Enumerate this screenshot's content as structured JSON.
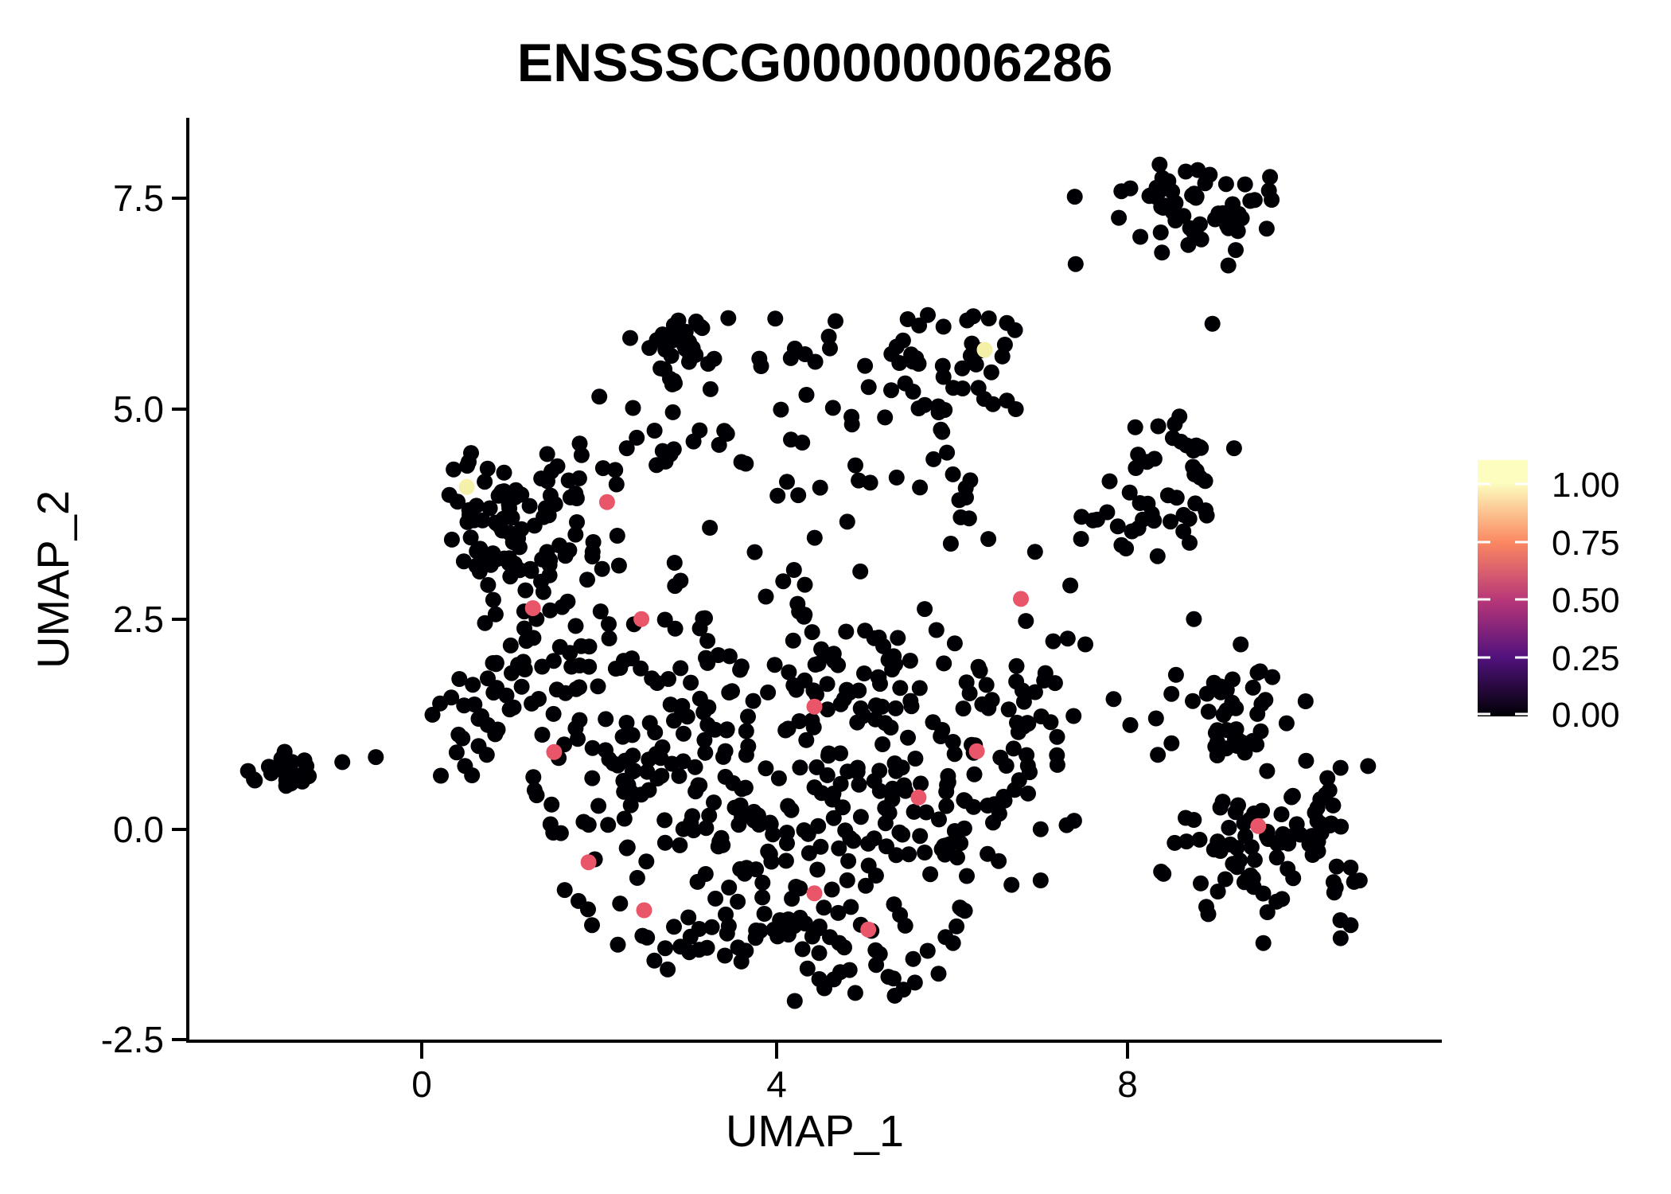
{
  "page": {
    "background": "#FFFFFF"
  },
  "chart_data": {
    "type": "scatter",
    "title": "ENSSSCG00000006286",
    "xlabel": "UMAP_1",
    "ylabel": "UMAP_2",
    "xlim": [
      -2.7,
      11.6
    ],
    "ylim": [
      -2.55,
      8.4
    ],
    "grid": false,
    "legend_position": "right",
    "x_ticks": [
      {
        "value": 0,
        "label": "0"
      },
      {
        "value": 4,
        "label": "4"
      },
      {
        "value": 8,
        "label": "8"
      }
    ],
    "y_ticks": [
      {
        "value": 7.5,
        "label": "7.5"
      },
      {
        "value": 5.0,
        "label": "5.0"
      },
      {
        "value": 2.5,
        "label": "2.5"
      },
      {
        "value": 0.0,
        "label": "0.0"
      },
      {
        "value": -2.5,
        "label": "-2.5"
      }
    ],
    "point_radius_px": 10,
    "point_color_zero": "#000004",
    "colorbar": {
      "colormap": "magma",
      "ticks": [
        {
          "value": 1.0,
          "label": "1.00"
        },
        {
          "value": 0.75,
          "label": "0.75"
        },
        {
          "value": 0.5,
          "label": "0.50"
        },
        {
          "value": 0.25,
          "label": "0.25"
        },
        {
          "value": 0.0,
          "label": "0.00"
        }
      ],
      "gradient": [
        {
          "offset": 0.0,
          "color": "#FCFDBF"
        },
        {
          "offset": 0.09,
          "color": "#FCFDBF"
        },
        {
          "offset": 0.32,
          "color": "#FB8861"
        },
        {
          "offset": 0.55,
          "color": "#B63679"
        },
        {
          "offset": 0.77,
          "color": "#51127C"
        },
        {
          "offset": 1.0,
          "color": "#000004"
        }
      ]
    },
    "highlight_points": [
      {
        "x": 0.51,
        "y": 4.07,
        "value": 0.96,
        "color": "#F5F1AB"
      },
      {
        "x": 6.38,
        "y": 5.7,
        "value": 0.98,
        "color": "#F4F0A8"
      },
      {
        "x": 2.1,
        "y": 3.89,
        "value": 0.7,
        "color": "#E95669"
      },
      {
        "x": 1.26,
        "y": 2.63,
        "value": 0.7,
        "color": "#E95669"
      },
      {
        "x": 2.49,
        "y": 2.5,
        "value": 0.7,
        "color": "#E95669"
      },
      {
        "x": 6.79,
        "y": 2.74,
        "value": 0.7,
        "color": "#E95669"
      },
      {
        "x": 4.45,
        "y": 1.46,
        "value": 0.7,
        "color": "#E95669"
      },
      {
        "x": 1.5,
        "y": 0.92,
        "value": 0.7,
        "color": "#E95669"
      },
      {
        "x": 6.29,
        "y": 0.93,
        "value": 0.7,
        "color": "#E95669"
      },
      {
        "x": 5.63,
        "y": 0.38,
        "value": 0.7,
        "color": "#E95669"
      },
      {
        "x": 1.89,
        "y": -0.39,
        "value": 0.7,
        "color": "#E95669"
      },
      {
        "x": 2.52,
        "y": -0.96,
        "value": 0.7,
        "color": "#E95669"
      },
      {
        "x": 4.45,
        "y": -0.76,
        "value": 0.7,
        "color": "#E95669"
      },
      {
        "x": 5.06,
        "y": -1.19,
        "value": 0.7,
        "color": "#E95669"
      },
      {
        "x": 9.48,
        "y": 0.04,
        "value": 0.7,
        "color": "#E95669"
      }
    ],
    "extra_points": [
      [
        -0.9,
        0.8
      ],
      [
        -0.52,
        0.86
      ],
      [
        7.41,
        6.72
      ],
      [
        8.96,
        6.01
      ],
      [
        7.9,
        7.27
      ],
      [
        7.4,
        7.52
      ],
      [
        4.07,
        4.99
      ],
      [
        4.66,
        5.01
      ],
      [
        5.8,
        4.4
      ],
      [
        6.02,
        4.22
      ],
      [
        6.95,
        3.3
      ],
      [
        7.35,
        2.9
      ],
      [
        7.52,
        2.2
      ],
      [
        7.84,
        1.55
      ],
      [
        8.03,
        1.24
      ],
      [
        7.2,
        1.1
      ],
      [
        8.75,
        2.5
      ],
      [
        9.28,
        2.2
      ],
      [
        1.62,
        -0.72
      ]
    ],
    "clusters": [
      {
        "name": "top-right",
        "cx": 8.85,
        "cy": 7.42,
        "sx": 0.5,
        "sy": 0.3,
        "n": 58,
        "clip": [
          7.45,
          9.65,
          6.6,
          8.05
        ]
      },
      {
        "name": "mid-right-upper",
        "cx": 6.0,
        "cy": 5.45,
        "sx": 0.48,
        "sy": 0.36,
        "n": 40,
        "clip": [
          5.0,
          6.95,
          4.7,
          6.15
        ]
      },
      {
        "name": "right-mid-a",
        "cx": 8.6,
        "cy": 4.35,
        "sx": 0.38,
        "sy": 0.33,
        "n": 28,
        "clip": [
          7.9,
          9.3,
          3.5,
          5.0
        ]
      },
      {
        "name": "right-mid-b",
        "cx": 8.05,
        "cy": 3.62,
        "sx": 0.4,
        "sy": 0.28,
        "n": 22,
        "clip": [
          7.4,
          8.9,
          3.2,
          4.2
        ]
      },
      {
        "name": "upper-middle",
        "cx": 2.95,
        "cy": 5.68,
        "sx": 0.3,
        "sy": 0.3,
        "n": 36,
        "clip": [
          2.3,
          3.6,
          4.95,
          6.25
        ]
      },
      {
        "name": "northwest",
        "cx": 1.15,
        "cy": 3.55,
        "sx": 0.45,
        "sy": 0.52,
        "n": 92,
        "clip": [
          0.25,
          2.25,
          2.5,
          4.7
        ]
      },
      {
        "name": "band",
        "dist": "uniform",
        "x0": 1.4,
        "x1": 6.3,
        "y0": 4.05,
        "y1": 5.25,
        "n": 44
      },
      {
        "name": "upper-scatter",
        "dist": "uniform",
        "x0": 3.3,
        "x1": 5.2,
        "y0": 5.3,
        "y1": 6.1,
        "n": 11
      },
      {
        "name": "mid-scatter",
        "dist": "uniform",
        "x0": 2.6,
        "x1": 7.0,
        "y0": 2.35,
        "y1": 4.0,
        "n": 26
      },
      {
        "name": "far-left",
        "cx": -1.62,
        "cy": 0.7,
        "sx": 0.17,
        "sy": 0.11,
        "n": 22,
        "clip": [
          -2.0,
          -1.2,
          0.35,
          1.0
        ]
      },
      {
        "name": "left-clump",
        "cx": 0.55,
        "cy": 1.2,
        "sx": 0.26,
        "sy": 0.3,
        "n": 24,
        "clip": [
          0.1,
          1.1,
          0.6,
          1.8
        ]
      },
      {
        "name": "left-bridge",
        "cx": 1.0,
        "cy": 2.05,
        "sx": 0.35,
        "sy": 0.45,
        "n": 22,
        "clip": [
          0.3,
          1.8,
          1.0,
          3.0
        ]
      },
      {
        "name": "central-left",
        "cx": 2.05,
        "cy": 1.2,
        "sx": 0.5,
        "sy": 0.95,
        "n": 80,
        "clip": [
          0.9,
          3.2,
          -1.3,
          2.7
        ]
      },
      {
        "name": "central-a",
        "cx": 3.6,
        "cy": 0.35,
        "sx": 0.85,
        "sy": 0.85,
        "n": 112,
        "clip": [
          1.4,
          5.6,
          -1.8,
          2.4
        ]
      },
      {
        "name": "central-b",
        "cx": 5.3,
        "cy": 0.35,
        "sx": 0.85,
        "sy": 0.85,
        "n": 112,
        "clip": [
          3.2,
          7.45,
          -1.9,
          2.4
        ]
      },
      {
        "name": "central-top",
        "cx": 4.6,
        "cy": 1.8,
        "sx": 0.95,
        "sy": 0.45,
        "n": 52,
        "clip": [
          2.5,
          6.9,
          0.9,
          2.8
        ]
      },
      {
        "name": "central-bottom-a",
        "cx": 3.3,
        "cy": -1.35,
        "sx": 0.75,
        "sy": 0.3,
        "n": 36,
        "clip": [
          1.6,
          5.0,
          -2.0,
          -0.7
        ]
      },
      {
        "name": "central-bottom-b",
        "cx": 5.1,
        "cy": -1.55,
        "sx": 0.55,
        "sy": 0.28,
        "n": 28,
        "clip": [
          3.8,
          6.4,
          -2.05,
          -0.9
        ]
      },
      {
        "name": "central-right",
        "cx": 6.65,
        "cy": 1.1,
        "sx": 0.45,
        "sy": 0.75,
        "n": 46,
        "clip": [
          5.6,
          7.5,
          -0.9,
          2.6
        ]
      },
      {
        "name": "bottom-right-upper",
        "cx": 9.1,
        "cy": 1.4,
        "sx": 0.45,
        "sy": 0.35,
        "n": 42,
        "clip": [
          8.25,
          10.1,
          0.85,
          2.15
        ]
      },
      {
        "name": "bottom-right-main",
        "cx": 9.6,
        "cy": -0.12,
        "sx": 0.62,
        "sy": 0.55,
        "n": 92,
        "clip": [
          8.25,
          10.95,
          -1.4,
          0.95
        ]
      }
    ],
    "rng_seed": 1337
  }
}
